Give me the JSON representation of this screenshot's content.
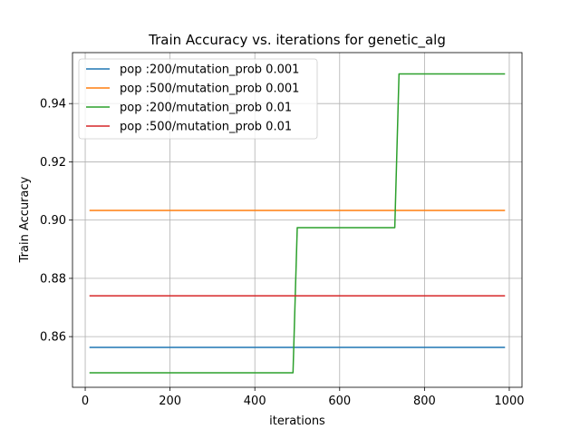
{
  "chart_data": {
    "type": "line",
    "title": "Train Accuracy vs. iterations for genetic_alg",
    "xlabel": "iterations",
    "ylabel": "Train Accuracy",
    "xlim": [
      -30,
      1030
    ],
    "ylim": [
      0.8426,
      0.9575
    ],
    "xticks": [
      0,
      200,
      400,
      600,
      800,
      1000
    ],
    "xtick_labels": [
      "0",
      "200",
      "400",
      "600",
      "800",
      "1000"
    ],
    "yticks": [
      0.86,
      0.88,
      0.9,
      0.92,
      0.94
    ],
    "ytick_labels": [
      "0.86",
      "0.88",
      "0.90",
      "0.92",
      "0.94"
    ],
    "grid": true,
    "legend_position": "top-left",
    "series": [
      {
        "name": "pop :200/mutation_prob 0.001",
        "color": "#1f77b4",
        "x": [
          10,
          990
        ],
        "y": [
          0.8563,
          0.8563
        ]
      },
      {
        "name": "pop :500/mutation_prob 0.001",
        "color": "#ff7f0e",
        "x": [
          10,
          990
        ],
        "y": [
          0.9033,
          0.9033
        ]
      },
      {
        "name": "pop :200/mutation_prob 0.01",
        "color": "#2ca02c",
        "x": [
          10,
          490,
          500,
          730,
          740,
          990
        ],
        "y": [
          0.8476,
          0.8476,
          0.8974,
          0.8974,
          0.9502,
          0.9502
        ]
      },
      {
        "name": "pop :500/mutation_prob 0.01",
        "color": "#d62728",
        "x": [
          10,
          990
        ],
        "y": [
          0.874,
          0.874
        ]
      }
    ]
  }
}
